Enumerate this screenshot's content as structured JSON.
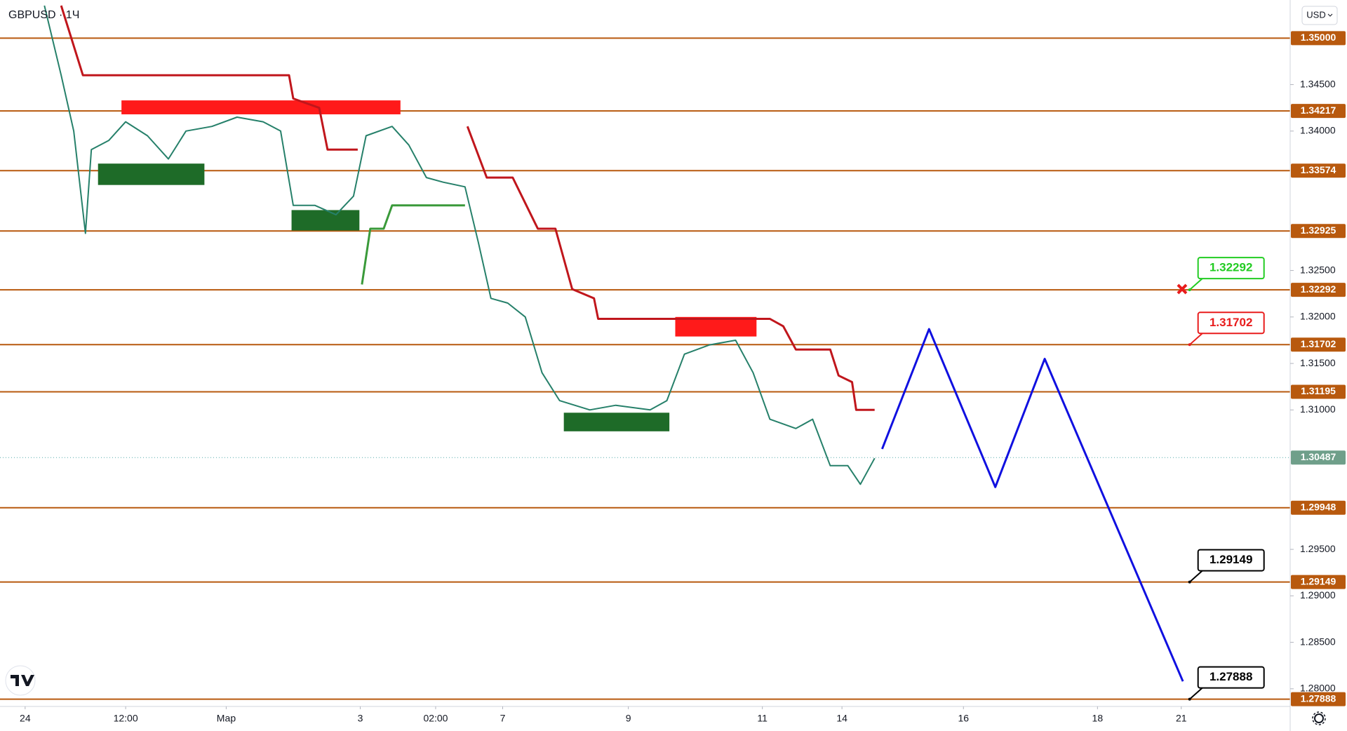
{
  "chart_data": {
    "type": "line",
    "title": "GBPUSD · 1Ч",
    "currency": "USD",
    "xlim": [
      -3,
      151
    ],
    "xticks": [
      {
        "value": 0,
        "label": "24"
      },
      {
        "value": 12,
        "label": "12:00"
      },
      {
        "value": 24,
        "label": "Мар"
      },
      {
        "value": 40,
        "label": "3"
      },
      {
        "value": 49,
        "label": "02:00"
      },
      {
        "value": 57,
        "label": "7"
      },
      {
        "value": 72,
        "label": "9"
      },
      {
        "value": 88,
        "label": "11"
      },
      {
        "value": 97.5,
        "label": "14"
      },
      {
        "value": 112,
        "label": "16"
      },
      {
        "value": 128,
        "label": "18"
      },
      {
        "value": 138,
        "label": "21"
      }
    ],
    "ylim": [
      1.2781,
      1.3541
    ],
    "yticks": [
      {
        "value": 1.345,
        "label": "1.34500"
      },
      {
        "value": 1.34,
        "label": "1.34000"
      },
      {
        "value": 1.325,
        "label": "1.32500"
      },
      {
        "value": 1.32,
        "label": "1.32000"
      },
      {
        "value": 1.315,
        "label": "1.31500"
      },
      {
        "value": 1.31,
        "label": "1.31000"
      },
      {
        "value": 1.295,
        "label": "1.29500"
      },
      {
        "value": 1.29,
        "label": "1.29000"
      },
      {
        "value": 1.285,
        "label": "1.28500"
      },
      {
        "value": 1.28,
        "label": "1.28000"
      }
    ],
    "series": [
      {
        "color": "#26806a",
        "x": [
          2.3,
          4.3,
          5.8,
          7.2,
          7.9,
          10,
          12,
          14.6,
          17.1,
          19.2,
          22.3,
          25.3,
          28.4,
          30.5,
          32,
          34.6,
          37.1,
          39.2,
          40.7,
          43.8,
          45.8,
          47.9,
          49.9,
          52.5,
          54.1,
          55.6,
          57.6,
          59.7,
          61.7,
          63.8,
          67.4,
          70.5,
          74.6,
          76.6,
          78.7,
          81.7,
          84.8,
          86.9,
          88.9,
          92,
          94,
          96.1,
          98.2,
          99.7,
          101.4
        ],
        "values": [
          1.3535,
          1.346,
          1.34,
          1.329,
          1.338,
          1.339,
          1.341,
          1.3395,
          1.337,
          1.34,
          1.3405,
          1.3415,
          1.341,
          1.34,
          1.332,
          1.332,
          1.331,
          1.333,
          1.3395,
          1.3405,
          1.3385,
          1.335,
          1.3345,
          1.334,
          1.328,
          1.322,
          1.3215,
          1.32,
          1.314,
          1.311,
          1.31,
          1.3105,
          1.31,
          1.311,
          1.316,
          1.317,
          1.3175,
          1.314,
          1.309,
          1.308,
          1.309,
          1.304,
          1.304,
          1.302,
          1.3048
        ]
      },
      {
        "color": "#c0161c",
        "x": [
          4.3,
          6.9,
          31.5,
          32,
          35.1,
          36.1,
          39.7,
          null,
          52.8,
          55.1,
          58.2,
          61.2,
          63.3,
          65.3,
          67.9,
          68.4,
          88.9,
          90.5,
          92,
          96.1,
          97.1,
          98.7,
          99.2,
          101.4
        ],
        "values": [
          1.3535,
          1.346,
          1.346,
          1.3435,
          1.3425,
          1.338,
          1.338,
          null,
          1.3405,
          1.335,
          1.335,
          1.3295,
          1.3295,
          1.323,
          1.322,
          1.3198,
          1.3198,
          1.319,
          1.3165,
          1.3165,
          1.3137,
          1.313,
          1.31,
          1.31
        ]
      },
      {
        "color": "#3a9a3a",
        "x": [
          40.2,
          41.2,
          42.8,
          43.8,
          52.5
        ],
        "values": [
          1.3235,
          1.3295,
          1.3295,
          1.332,
          1.332
        ]
      },
      {
        "color": "#1010e0",
        "x": [
          102.3,
          107.9,
          115.8,
          121.7,
          138.2
        ],
        "values": [
          1.3058,
          1.3187,
          1.3017,
          1.3155,
          1.2808
        ]
      }
    ],
    "zones": [
      {
        "color": "#ff1a1a",
        "x": [
          11.5,
          44.8
        ],
        "y": [
          1.3418,
          1.3433
        ]
      },
      {
        "color": "#ff1a1a",
        "x": [
          77.6,
          87.3
        ],
        "y": [
          1.3179,
          1.32
        ]
      },
      {
        "color": "#1e6b28",
        "x": [
          8.7,
          21.4
        ],
        "y": [
          1.3342,
          1.3365
        ]
      },
      {
        "color": "#1e6b28",
        "x": [
          31.8,
          39.9
        ],
        "y": [
          1.3293,
          1.3315
        ]
      },
      {
        "color": "#1e6b28",
        "x": [
          64.3,
          76.9
        ],
        "y": [
          1.3077,
          1.3097
        ]
      }
    ],
    "levels": {
      "color": "#b8590e",
      "values": [
        1.35,
        1.34217,
        1.33574,
        1.32925,
        1.32292,
        1.31702,
        1.31195,
        1.29948,
        1.29149,
        1.27888
      ],
      "value_labels": [
        "1.35000",
        "1.34217",
        "1.33574",
        "1.32925",
        "1.32292",
        "1.31702",
        "1.31195",
        "1.29948",
        "1.29149",
        "1.27888"
      ]
    },
    "current": {
      "value": 1.30487,
      "color": "#6f9f8a"
    },
    "callouts": [
      {
        "x": 139,
        "value": 1.32292,
        "color": "#22cc22"
      },
      {
        "x": 139,
        "value": 1.31702,
        "color": "#e81c1c"
      },
      {
        "x": 139,
        "value": 1.29149,
        "color": "#000000"
      },
      {
        "x": 139,
        "value": 1.27888,
        "color": "#000000"
      }
    ],
    "marker": {
      "x": 138.1,
      "value": 1.323,
      "color": "#e81c1c"
    }
  }
}
